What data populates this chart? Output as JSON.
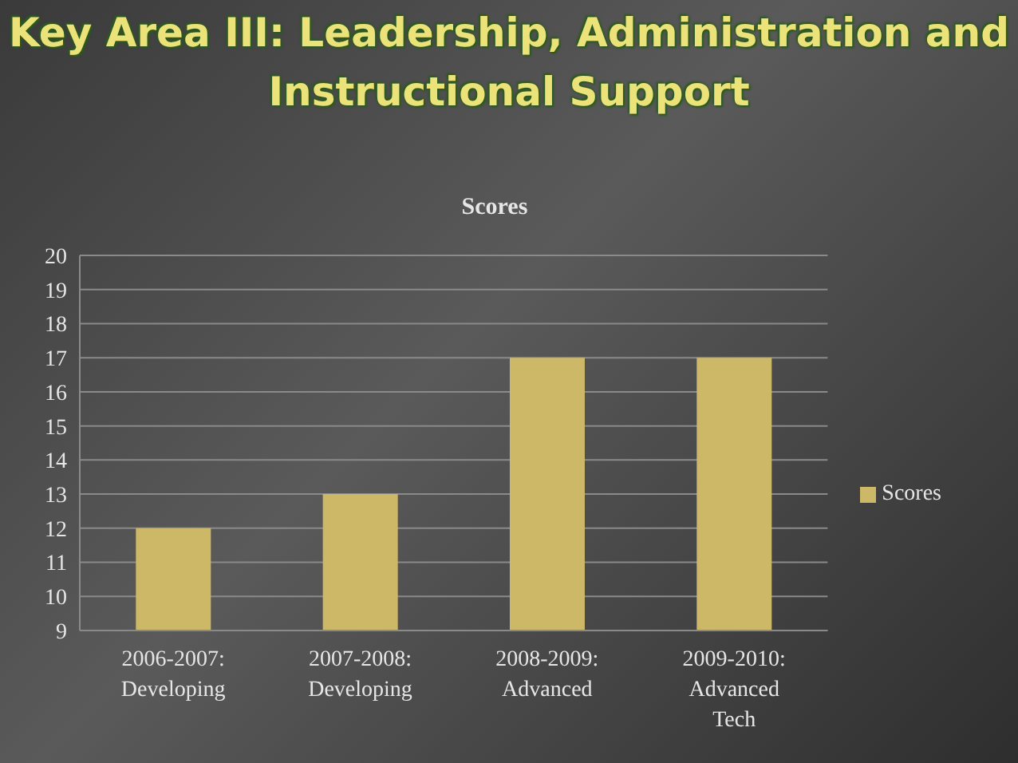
{
  "chart_data": {
    "type": "bar",
    "title": "Scores",
    "subtitle": "Key Area III: Leadership, Administration and Instructional Support",
    "categories": [
      "2006-2007: Developing",
      "2007-2008: Developing",
      "2008-2009: Advanced",
      "2009-2010: Advanced Tech"
    ],
    "series": [
      {
        "name": "Scores",
        "color": "#cdb868",
        "values": [
          12,
          13,
          17,
          17
        ]
      }
    ],
    "ylim": [
      9,
      20
    ],
    "yticks": [
      9,
      10,
      11,
      12,
      13,
      14,
      15,
      16,
      17,
      18,
      19,
      20
    ],
    "grid": "y",
    "legend": "right"
  }
}
